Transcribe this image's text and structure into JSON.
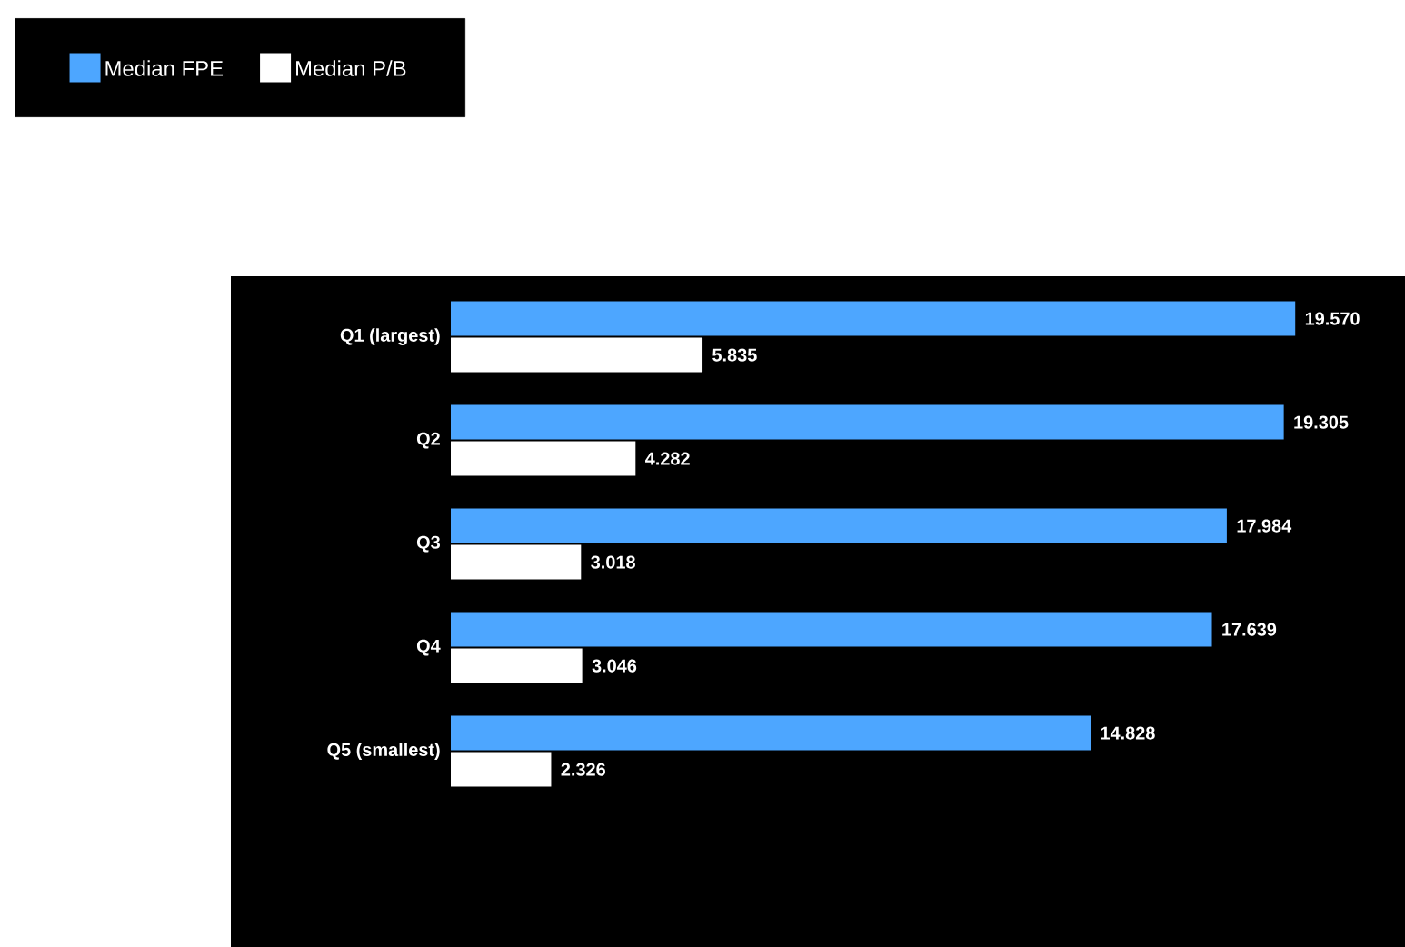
{
  "chart_data": {
    "type": "bar",
    "orientation": "horizontal",
    "categories": [
      "Q1 (largest)",
      "Q2",
      "Q3",
      "Q4",
      "Q5 (smallest)"
    ],
    "series": [
      {
        "name": "Median FPE",
        "color": "#4da6ff",
        "values": [
          19.57,
          19.305,
          17.984,
          17.639,
          14.828
        ],
        "value_labels": [
          "19.570",
          "19.305",
          "17.984",
          "17.639",
          "14.828"
        ]
      },
      {
        "name": "Median P/B",
        "color": "#ffffff",
        "values": [
          5.835,
          4.282,
          3.018,
          3.046,
          2.326
        ],
        "value_labels": [
          "5.835",
          "4.282",
          "3.018",
          "3.046",
          "2.326"
        ]
      }
    ],
    "legend": "top left"
  }
}
